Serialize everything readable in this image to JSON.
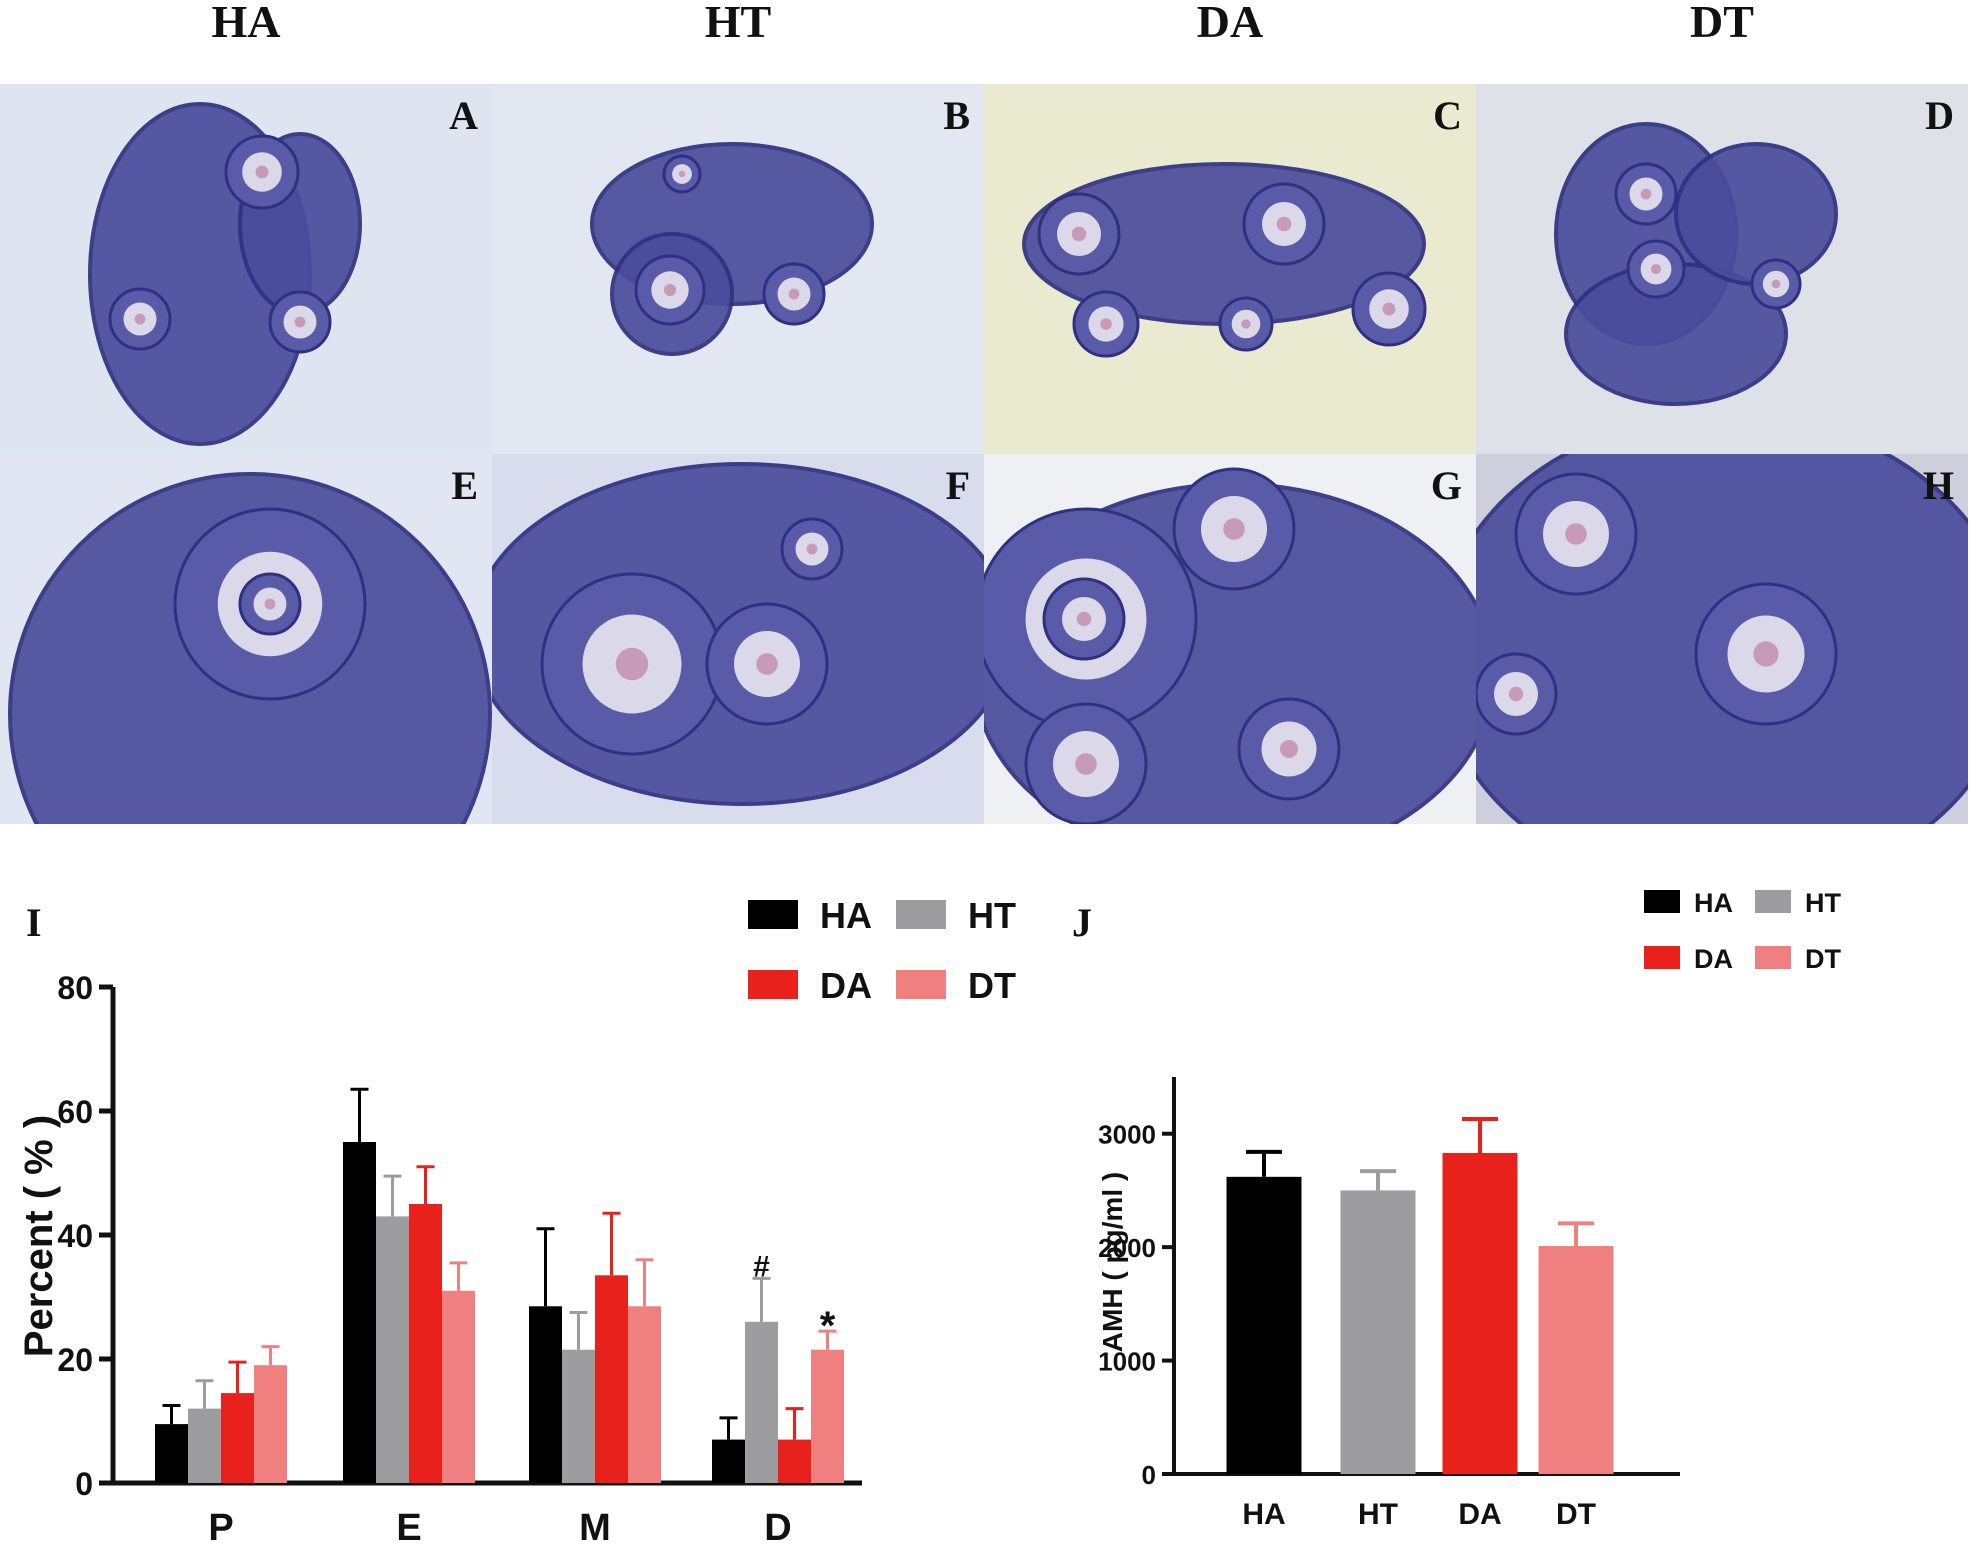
{
  "column_headers": [
    "HA",
    "HT",
    "DA",
    "DT"
  ],
  "panels": [
    {
      "letter": "A",
      "bg": "#dfe4f1"
    },
    {
      "letter": "B",
      "bg": "#e3e7f2"
    },
    {
      "letter": "C",
      "bg": "#e9ead0"
    },
    {
      "letter": "D",
      "bg": "#dfe1e8"
    },
    {
      "letter": "E",
      "bg": "#e2e6f2"
    },
    {
      "letter": "F",
      "bg": "#d8dcec"
    },
    {
      "letter": "G",
      "bg": "#eef0f4"
    },
    {
      "letter": "H",
      "bg": "#cdd0dc"
    }
  ],
  "colors": {
    "HA": "#000000",
    "HT": "#9d9da0",
    "DA": "#e8211d",
    "DT": "#f08080",
    "tissue": "#4b4c9c",
    "tissue_dark": "#2f3080"
  },
  "chart_data": [
    {
      "panel_letter": "I",
      "type": "bar",
      "categories": [
        "P",
        "E",
        "M",
        "D"
      ],
      "ylabel": "Percent ( % )",
      "ylim": [
        0,
        80
      ],
      "yticks": [
        "0",
        "20",
        "40",
        "60",
        "80"
      ],
      "legend": [
        "HA",
        "HT",
        "DA",
        "DT"
      ],
      "series": [
        {
          "name": "HA",
          "values": [
            9.5,
            55,
            28.5,
            7
          ],
          "errors": [
            3,
            8.5,
            12.5,
            3.5
          ]
        },
        {
          "name": "HT",
          "values": [
            12,
            43,
            21.5,
            26
          ],
          "errors": [
            4.5,
            6.5,
            6,
            7
          ]
        },
        {
          "name": "DA",
          "values": [
            14.5,
            45,
            33.5,
            7
          ],
          "errors": [
            5,
            6,
            10,
            5
          ]
        },
        {
          "name": "DT",
          "values": [
            19,
            31,
            28.5,
            21.5
          ],
          "errors": [
            3,
            4.5,
            7.5,
            3
          ]
        }
      ],
      "annotations": [
        {
          "category": "D",
          "series": "HT",
          "text": "#"
        },
        {
          "category": "D",
          "series": "DT",
          "text": "*"
        }
      ]
    },
    {
      "panel_letter": "J",
      "type": "bar",
      "categories": [
        "HA",
        "HT",
        "DA",
        "DT"
      ],
      "ylabel": "AMH ( pg/ml )",
      "ylim": [
        0,
        3500
      ],
      "yticks": [
        "0",
        "1000",
        "2000",
        "3000"
      ],
      "legend": [
        "HA",
        "HT",
        "DA",
        "DT"
      ],
      "values": [
        2620,
        2500,
        2830,
        2010
      ],
      "errors": [
        220,
        170,
        300,
        200
      ]
    }
  ]
}
